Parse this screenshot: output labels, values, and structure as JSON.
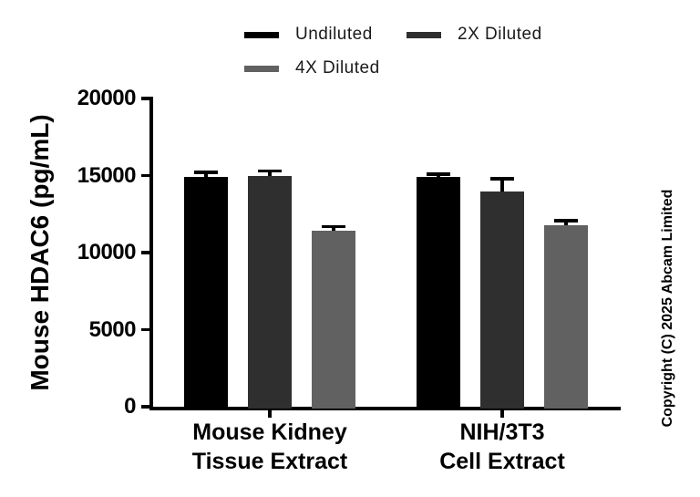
{
  "chart": {
    "y_axis_title": "Mouse HDAC6 (pg/mL)"
  },
  "footer": {
    "copyright": "Copyright (C) 2025 Abcam Limited"
  },
  "chart_data": {
    "type": "bar",
    "ylabel": "Mouse HDAC6 (pg/mL)",
    "ylim": [
      0,
      20000
    ],
    "yticks": [
      0,
      5000,
      10000,
      15000,
      20000
    ],
    "grid": false,
    "legend_position": "top",
    "error_bars": "upper",
    "categories": [
      "Mouse Kidney Tissue Extract",
      "NIH/3T3 Cell Extract"
    ],
    "category_lines": [
      [
        "Mouse Kidney",
        "Tissue Extract"
      ],
      [
        "NIH/3T3",
        "Cell Extract"
      ]
    ],
    "series": [
      {
        "name": "Undiluted",
        "color": "#000000",
        "values": [
          14900,
          14900
        ],
        "errors": [
          300,
          200
        ]
      },
      {
        "name": "2X Diluted",
        "color": "#2f2f2f",
        "values": [
          14950,
          13950
        ],
        "errors": [
          350,
          850
        ]
      },
      {
        "name": "4X Diluted",
        "color": "#616161",
        "values": [
          11400,
          11750
        ],
        "errors": [
          280,
          330
        ]
      }
    ],
    "axis_color": "#000000"
  }
}
